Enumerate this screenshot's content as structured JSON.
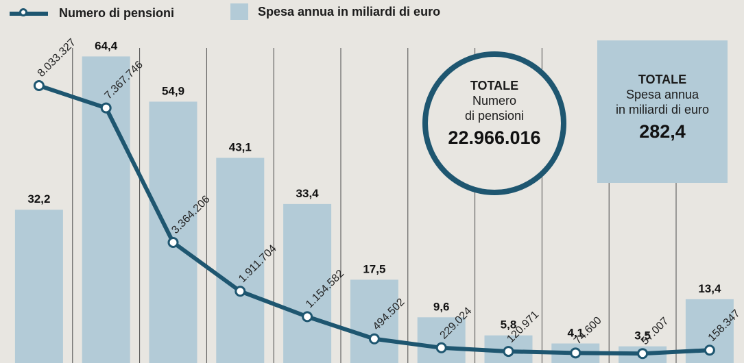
{
  "legend": {
    "line_label": "Numero di pensioni",
    "bar_label": "Spesa annua in miliardi di euro"
  },
  "totals": {
    "pensions": {
      "heading": "TOTALE",
      "line1": "Numero",
      "line2": "di pensioni",
      "value": "22.966.016"
    },
    "spending": {
      "heading": "TOTALE",
      "line1": "Spesa annua",
      "line2": "in miliardi di euro",
      "value": "282,4"
    }
  },
  "colors": {
    "bar": "#b3cbd7",
    "line": "#1e5670",
    "background": "#e8e6e1",
    "grid": "#4a4a4a"
  },
  "chart_data": {
    "type": "bar",
    "categories": [
      "",
      "",
      "",
      "",
      "",
      "",
      "",
      "",
      "",
      "",
      ""
    ],
    "series": [
      {
        "name": "Spesa annua in miliardi di euro",
        "type": "bar",
        "values": [
          32.2,
          64.4,
          54.9,
          43.1,
          33.4,
          17.5,
          9.6,
          5.8,
          4.1,
          3.5,
          13.4
        ],
        "labels": [
          "32,2",
          "64,4",
          "54,9",
          "43,1",
          "33,4",
          "17,5",
          "9,6",
          "5,8",
          "4,1",
          "3,5",
          "13,4"
        ]
      },
      {
        "name": "Numero di pensioni",
        "type": "line",
        "values": [
          8033327,
          7367746,
          3364206,
          1911704,
          1154582,
          494502,
          229024,
          120971,
          74600,
          57007,
          158347
        ],
        "labels": [
          "8.033.327",
          "7.367.746",
          "3.364.206",
          "1.911.704",
          "1.154.582",
          "494.502",
          "229.024",
          "120.971",
          "74.600",
          "57.007",
          "158.347"
        ]
      }
    ],
    "grid": true
  }
}
